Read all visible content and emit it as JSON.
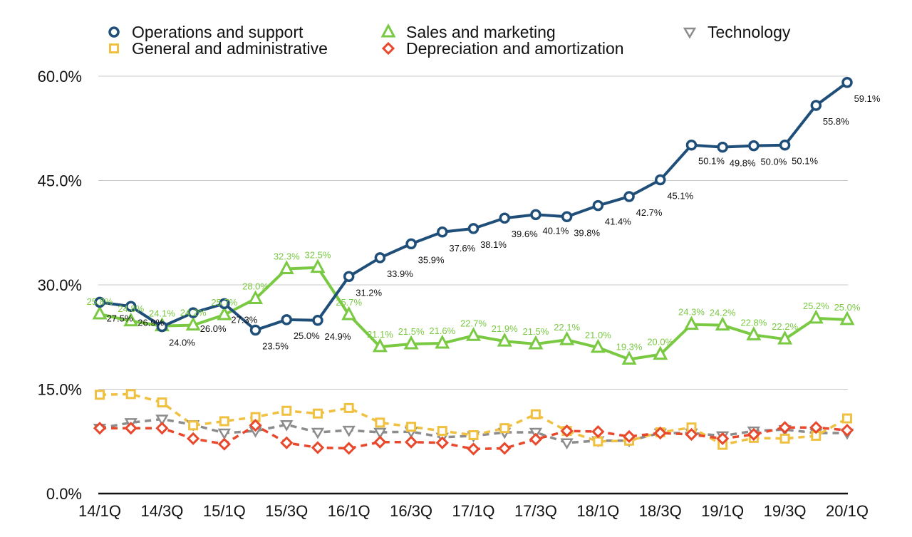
{
  "chart_data": {
    "type": "line",
    "title": "",
    "xlabel": "",
    "ylabel": "",
    "ylim": [
      0,
      60
    ],
    "y_ticks": [
      "0.0%",
      "15.0%",
      "30.0%",
      "45.0%",
      "60.0%"
    ],
    "categories": [
      "14/1Q",
      "14/2Q",
      "14/3Q",
      "14/4Q",
      "15/1Q",
      "15/2Q",
      "15/3Q",
      "15/4Q",
      "16/1Q",
      "16/2Q",
      "16/3Q",
      "16/4Q",
      "17/1Q",
      "17/2Q",
      "17/3Q",
      "17/4Q",
      "18/1Q",
      "18/2Q",
      "18/3Q",
      "18/4Q",
      "19/1Q",
      "19/2Q",
      "19/3Q",
      "19/4Q",
      "20/1Q"
    ],
    "x_tick_labels": [
      "14/1Q",
      "",
      "14/3Q",
      "",
      "15/1Q",
      "",
      "15/3Q",
      "",
      "16/1Q",
      "",
      "16/3Q",
      "",
      "17/1Q",
      "",
      "17/3Q",
      "",
      "18/1Q",
      "",
      "18/3Q",
      "",
      "19/1Q",
      "",
      "19/3Q",
      "",
      "20/1Q"
    ],
    "legend": {
      "position": "top"
    },
    "series": [
      {
        "name": "Operations and support",
        "color": "#1f4e79",
        "marker": "circle",
        "dash": "solid",
        "values": [
          27.5,
          26.9,
          24.0,
          26.0,
          27.3,
          23.5,
          25.0,
          24.9,
          31.2,
          33.9,
          35.9,
          37.6,
          38.1,
          39.6,
          40.1,
          39.8,
          41.4,
          42.7,
          45.1,
          50.1,
          49.8,
          50.0,
          50.1,
          55.8,
          59.1
        ],
        "labels": [
          "27.5%",
          "26.9%",
          "24.0%",
          "26.0%",
          "27.3%",
          "23.5%",
          "25.0%",
          "24.9%",
          "31.2%",
          "33.9%",
          "35.9%",
          "37.6%",
          "38.1%",
          "39.6%",
          "40.1%",
          "39.8%",
          "41.4%",
          "42.7%",
          "45.1%",
          "50.1%",
          "49.8%",
          "50.0%",
          "50.1%",
          "55.8%",
          "59.1%"
        ]
      },
      {
        "name": "Sales and marketing",
        "color": "#7ac943",
        "marker": "triangle",
        "dash": "solid",
        "values": [
          25.8,
          24.8,
          24.1,
          24.2,
          25.7,
          28.0,
          32.3,
          32.5,
          25.7,
          21.1,
          21.5,
          21.6,
          22.7,
          21.9,
          21.5,
          22.1,
          21.0,
          19.3,
          20.0,
          24.3,
          24.2,
          22.8,
          22.2,
          25.2,
          25.0
        ],
        "labels": [
          "25.8%",
          "24.8%",
          "24.1%",
          "24.2%",
          "25.7%",
          "28.0%",
          "32.3%",
          "32.5%",
          "25.7%",
          "21.1%",
          "21.5%",
          "21.6%",
          "22.7%",
          "21.9%",
          "21.5%",
          "22.1%",
          "21.0%",
          "19.3%",
          "20.0%",
          "24.3%",
          "24.2%",
          "22.8%",
          "22.2%",
          "25.2%",
          "25.0%"
        ]
      },
      {
        "name": "Technology",
        "color": "#8c8c8c",
        "marker": "triangle-down",
        "dash": "dashed",
        "values": [
          9.4,
          10.2,
          10.7,
          9.9,
          8.7,
          9.0,
          9.9,
          8.8,
          9.1,
          8.8,
          8.9,
          8.1,
          8.3,
          8.8,
          8.8,
          7.3,
          7.6,
          7.6,
          8.7,
          8.7,
          8.3,
          9.0,
          9.2,
          8.7,
          8.7
        ]
      },
      {
        "name": "General and administrative",
        "color": "#f0c040",
        "marker": "square",
        "dash": "dashed",
        "values": [
          14.2,
          14.3,
          13.1,
          9.8,
          10.4,
          11.0,
          11.9,
          11.5,
          12.3,
          10.2,
          9.6,
          9.0,
          8.4,
          9.4,
          11.4,
          9.0,
          7.5,
          7.6,
          8.8,
          9.5,
          7.0,
          8.0,
          7.9,
          8.3,
          10.8
        ]
      },
      {
        "name": "Depreciation and amortization",
        "color": "#e8482c",
        "marker": "diamond",
        "dash": "dashed",
        "values": [
          9.4,
          9.4,
          9.4,
          7.9,
          7.1,
          9.8,
          7.3,
          6.6,
          6.5,
          7.4,
          7.4,
          7.3,
          6.4,
          6.5,
          7.8,
          9.0,
          8.9,
          8.2,
          8.7,
          8.5,
          7.9,
          8.5,
          9.5,
          9.5,
          9.1
        ]
      }
    ]
  }
}
